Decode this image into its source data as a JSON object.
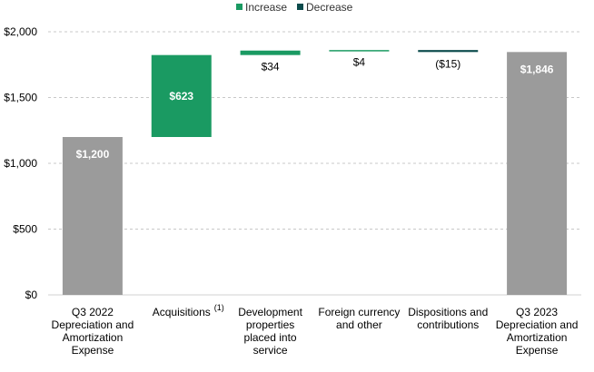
{
  "chart_data": {
    "type": "bar",
    "subtype": "waterfall",
    "title": "",
    "xlabel": "",
    "ylabel": "",
    "ylim": [
      0,
      2000
    ],
    "yticks": [
      0,
      500,
      1000,
      1500,
      2000
    ],
    "ytick_labels": [
      "$0",
      "$500",
      "$1,000",
      "$1,500",
      "$2,000"
    ],
    "grid": true,
    "legend": {
      "placement": "top-center",
      "entries": [
        {
          "name": "Increase",
          "color": "#1a9a62"
        },
        {
          "name": "Decrease",
          "color": "#0b4b4c"
        }
      ]
    },
    "categories": [
      "Q3 2022 Depreciation and Amortization Expense",
      "Acquisitions",
      "Development properties placed into service",
      "Foreign currency and other",
      "Dispositions and contributions",
      "Q3 2023 Depreciation and Amortization Expense"
    ],
    "category_lines": [
      [
        "Q3 2022",
        "Depreciation and",
        "Amortization",
        "Expense"
      ],
      [
        "Acquisitions"
      ],
      [
        "Development",
        "properties",
        "placed into",
        "service"
      ],
      [
        "Foreign currency",
        "and other"
      ],
      [
        "Dispositions and",
        "contributions"
      ],
      [
        "Q3 2023",
        "Depreciation and",
        "Amortization",
        "Expense"
      ]
    ],
    "category_footnotes": [
      "",
      "(1)",
      "",
      "",
      "",
      ""
    ],
    "bars": [
      {
        "kind": "total",
        "start": 0,
        "end": 1200,
        "label": "$1,200",
        "color": "#9b9b9b"
      },
      {
        "kind": "increase",
        "start": 1200,
        "end": 1823,
        "label": "$623",
        "color": "#1a9a62"
      },
      {
        "kind": "increase",
        "start": 1823,
        "end": 1857,
        "label": "$34",
        "color": "#1a9a62"
      },
      {
        "kind": "increase",
        "start": 1857,
        "end": 1861,
        "label": "$4",
        "color": "#1a9a62"
      },
      {
        "kind": "decrease",
        "start": 1861,
        "end": 1846,
        "label": "($15)",
        "color": "#0b4b4c"
      },
      {
        "kind": "total",
        "start": 0,
        "end": 1846,
        "label": "$1,846",
        "color": "#9b9b9b"
      }
    ],
    "colors": {
      "grid": "#c8c8c8",
      "axis": "#d0d0d0",
      "total": "#9b9b9b",
      "increase": "#1a9a62",
      "decrease": "#0b4b4c"
    }
  }
}
